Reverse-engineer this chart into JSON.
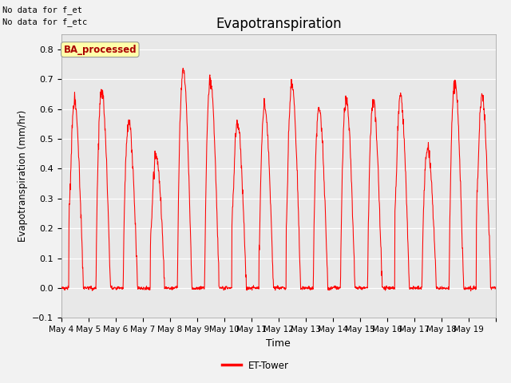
{
  "title": "Evapotranspiration",
  "ylabel": "Evapotranspiration (mm/hr)",
  "xlabel": "Time",
  "note_line1": "No data for f_et",
  "note_line2": "No data for f_etc",
  "ba_label": "BA_processed",
  "legend_label": "ET-Tower",
  "line_color": "#ff0000",
  "ylim": [
    -0.1,
    0.85
  ],
  "yticks": [
    -0.1,
    0.0,
    0.1,
    0.2,
    0.3,
    0.4,
    0.5,
    0.6,
    0.7,
    0.8
  ],
  "fig_bg": "#f2f2f2",
  "plot_bg": "#e8e8e8",
  "days": [
    "May 4",
    "May 5",
    "May 6",
    "May 7",
    "May 8",
    "May 9",
    "May 10",
    "May 11",
    "May 12",
    "May 13",
    "May 14",
    "May 15",
    "May 16",
    "May 17",
    "May 18",
    "May 19"
  ],
  "peaks": [
    0.625,
    0.665,
    0.555,
    0.445,
    0.735,
    0.695,
    0.555,
    0.61,
    0.685,
    0.605,
    0.635,
    0.63,
    0.65,
    0.465,
    0.695,
    0.65
  ],
  "secondary_peaks": [
    0.58,
    0.0,
    0.0,
    0.41,
    0.0,
    0.0,
    0.54,
    0.36,
    0.55,
    0.0,
    0.0,
    0.0,
    0.63,
    0.0,
    0.0,
    0.63
  ],
  "num_days": 16
}
